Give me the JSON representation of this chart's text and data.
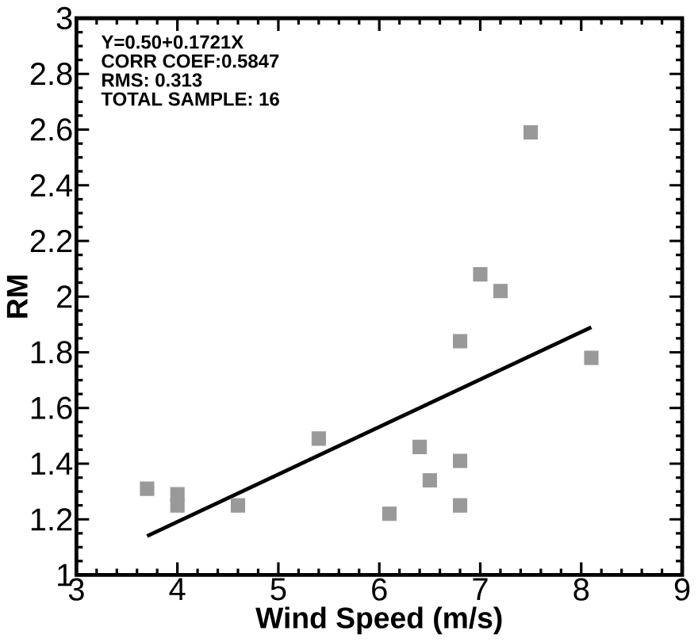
{
  "chart_data": {
    "type": "scatter",
    "xlabel": "Wind Speed (m/s)",
    "ylabel": "RM",
    "annotations": [
      "Y=0.50+0.1721X",
      "CORR COEF:0.5847",
      "RMS: 0.313",
      "TOTAL SAMPLE: 16"
    ],
    "x": [
      3.7,
      4.0,
      4.0,
      4.6,
      5.4,
      6.1,
      6.4,
      6.5,
      6.8,
      6.8,
      6.8,
      7.0,
      7.2,
      7.5,
      8.1
    ],
    "series": [
      {
        "color": "#999999",
        "marker": "square",
        "values": [
          1.31,
          1.29,
          1.25,
          1.25,
          1.49,
          1.22,
          1.46,
          1.34,
          1.41,
          1.25,
          1.84,
          2.08,
          2.02,
          2.59,
          1.78
        ]
      },
      {
        "type": "line",
        "color": "#000000",
        "x": [
          3.7,
          8.1
        ],
        "values": [
          1.14,
          1.89
        ],
        "line_style": "solid"
      }
    ],
    "xlim": [
      3,
      9
    ],
    "ylim": [
      1,
      3
    ],
    "xticks": [
      3,
      4,
      5,
      6,
      7,
      8,
      9
    ],
    "yticks": [
      1,
      1.2,
      1.4,
      1.6,
      1.8,
      2,
      2.2,
      2.4,
      2.6,
      2.8,
      3
    ],
    "grid": false
  }
}
